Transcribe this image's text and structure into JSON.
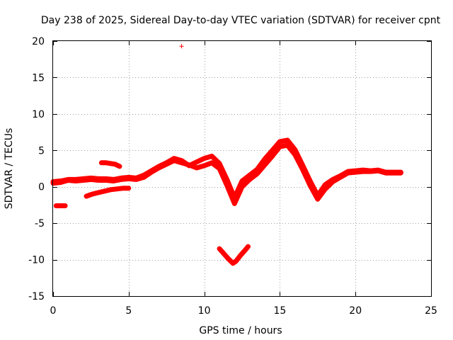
{
  "chart_data": {
    "type": "scatter",
    "title": "Day 238 of 2025, Sidereal Day-to-day VTEC variation (SDTVAR) for receiver cpnt",
    "xlabel": "GPS time / hours",
    "ylabel": "SDTVAR / TECUs",
    "xlim": [
      0,
      25
    ],
    "ylim": [
      -15,
      20
    ],
    "xticks": [
      "0",
      "5",
      "10",
      "15",
      "20",
      "25"
    ],
    "yticks": [
      "-15",
      "-10",
      "-5",
      "0",
      "5",
      "10",
      "15",
      "20"
    ],
    "grid": true,
    "marker": "+",
    "series_color": "#ff0000",
    "series": [
      {
        "name": "main-trace-a",
        "x": [
          0.0,
          0.5,
          1.0,
          1.5,
          2.0,
          2.5,
          3.0,
          3.5,
          4.0,
          4.5,
          5.0,
          5.5,
          6.0,
          6.5,
          7.0,
          7.5,
          8.0,
          8.5,
          9.0,
          9.5,
          10.0,
          10.5,
          11.0,
          11.5,
          12.0,
          12.5,
          13.0,
          13.5,
          14.0,
          14.5,
          15.0,
          15.5,
          16.0,
          16.5,
          17.0,
          17.5,
          18.0,
          18.5,
          19.0,
          19.5,
          20.0,
          20.5,
          21.0,
          21.5,
          22.0,
          22.5,
          23.0
        ],
        "y": [
          0.7,
          0.8,
          1.0,
          1.0,
          1.1,
          1.2,
          1.1,
          1.1,
          1.0,
          1.2,
          1.3,
          1.2,
          1.6,
          2.2,
          2.8,
          3.3,
          3.9,
          3.6,
          2.9,
          3.4,
          3.9,
          4.2,
          3.2,
          1.0,
          -1.5,
          0.8,
          1.6,
          2.4,
          3.8,
          5.0,
          6.2,
          6.4,
          5.1,
          3.0,
          0.8,
          -1.2,
          0.3,
          1.0,
          1.5,
          2.1,
          2.2,
          2.3,
          2.2,
          2.3,
          2.0,
          2.0,
          2.0
        ]
      },
      {
        "name": "main-trace-b",
        "x": [
          0.0,
          0.5,
          1.0,
          1.5,
          2.0,
          2.5,
          3.0,
          3.5,
          4.0,
          4.5,
          5.0,
          5.5,
          6.0,
          6.5,
          7.0,
          7.5,
          8.0,
          8.5,
          9.0,
          9.5,
          10.0,
          10.5,
          11.0,
          11.5,
          12.0,
          12.5,
          13.0,
          13.5,
          14.0,
          14.5,
          15.0,
          15.5,
          16.0,
          16.5,
          17.0,
          17.5,
          18.0,
          18.5,
          19.0,
          19.5,
          20.0,
          20.5,
          21.0,
          21.5,
          22.0,
          22.5,
          23.0
        ],
        "y": [
          0.5,
          0.6,
          0.9,
          0.8,
          0.9,
          1.0,
          0.9,
          0.9,
          0.8,
          1.0,
          1.1,
          1.0,
          1.3,
          2.0,
          2.6,
          3.1,
          3.6,
          3.3,
          3.0,
          2.6,
          2.9,
          3.3,
          2.5,
          0.2,
          -2.3,
          0.0,
          1.0,
          1.8,
          3.0,
          4.2,
          5.5,
          5.7,
          4.4,
          2.4,
          0.2,
          -1.7,
          -0.3,
          0.7,
          1.3,
          1.9,
          2.0,
          2.1,
          2.1,
          2.2,
          1.9,
          1.9,
          1.9
        ]
      },
      {
        "name": "upper-short-arc",
        "x": [
          3.2,
          3.5,
          3.8,
          4.1,
          4.4
        ],
        "y": [
          3.3,
          3.3,
          3.2,
          3.1,
          2.8
        ]
      },
      {
        "name": "lower-arc",
        "x": [
          2.2,
          2.6,
          3.0,
          3.4,
          3.8,
          4.2,
          4.6,
          5.0
        ],
        "y": [
          -1.3,
          -1.0,
          -0.8,
          -0.6,
          -0.4,
          -0.3,
          -0.2,
          -0.2
        ]
      },
      {
        "name": "left-offset-segment",
        "x": [
          0.2,
          0.4,
          0.6,
          0.8
        ],
        "y": [
          -2.6,
          -2.6,
          -2.6,
          -2.6
        ]
      },
      {
        "name": "v-shape-segment",
        "x": [
          11.0,
          11.3,
          11.6,
          11.9,
          12.1,
          12.4,
          12.7,
          12.9
        ],
        "y": [
          -8.5,
          -9.2,
          -9.9,
          -10.5,
          -10.2,
          -9.4,
          -8.7,
          -8.2
        ]
      },
      {
        "name": "outlier",
        "x": [
          8.5
        ],
        "y": [
          19.3
        ]
      }
    ]
  }
}
